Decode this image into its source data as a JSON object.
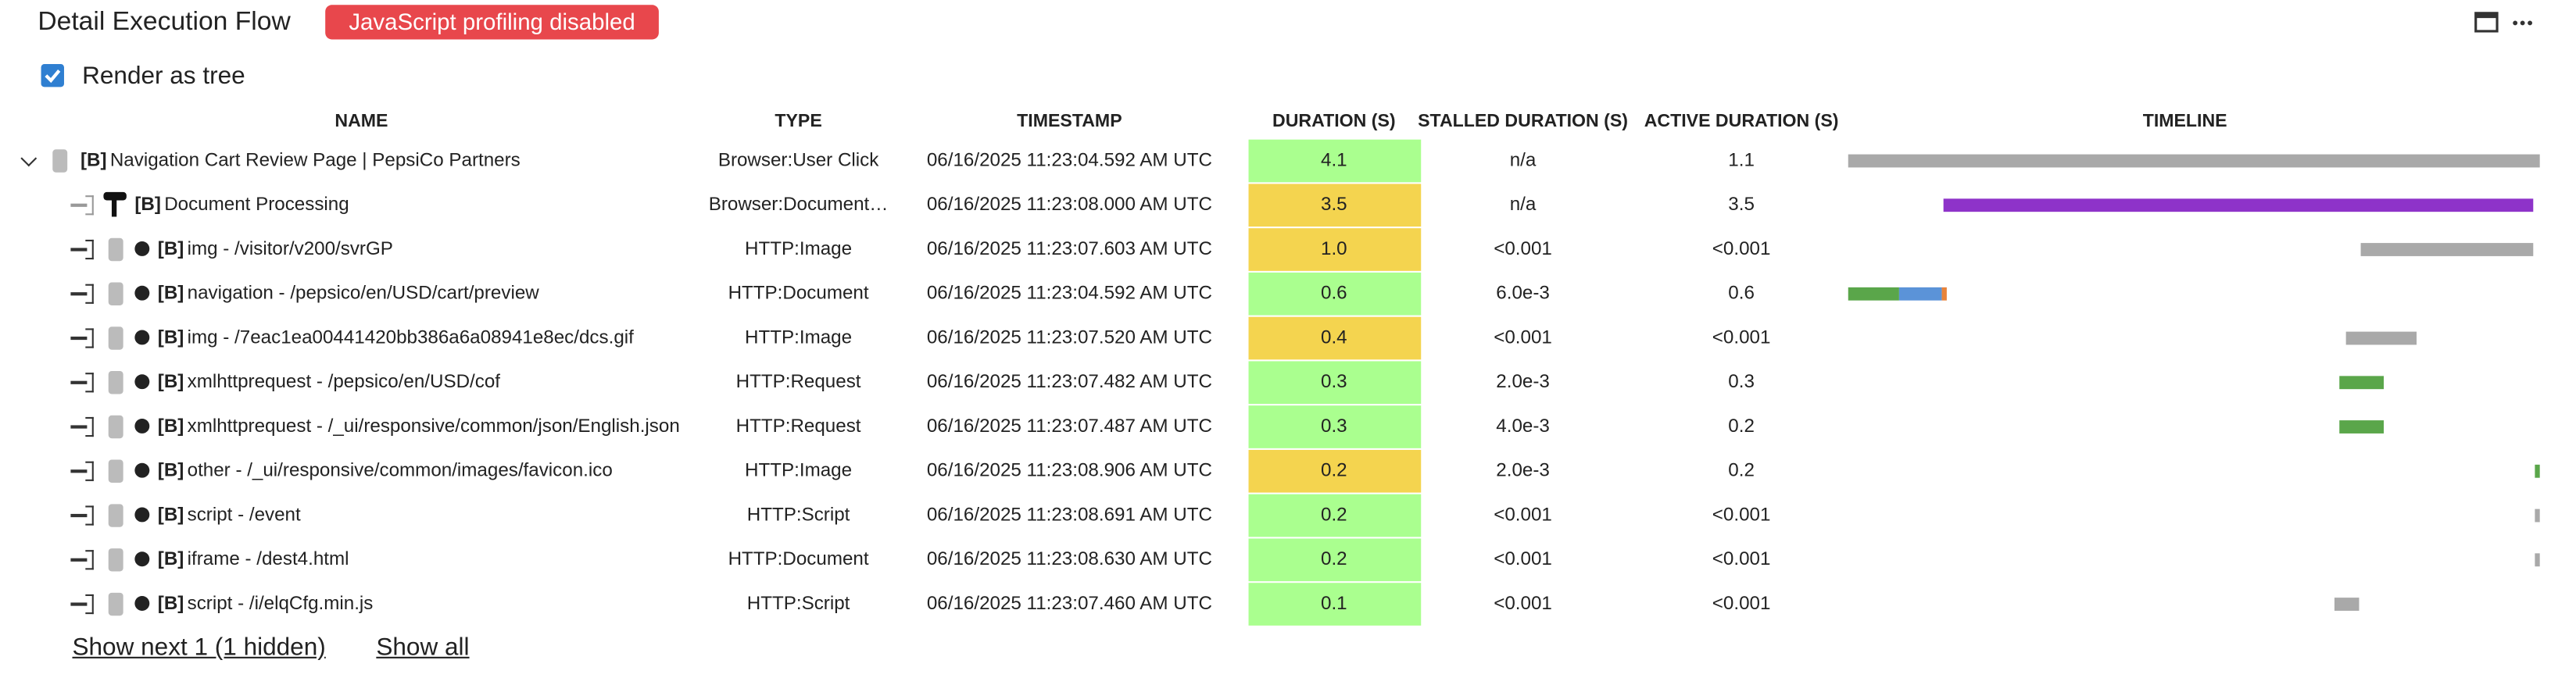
{
  "header": {
    "title": "Detail Execution Flow",
    "badge": "JavaScript profiling disabled",
    "checkbox_label": "Render as tree"
  },
  "table": {
    "columns": [
      "NAME",
      "TYPE",
      "TIMESTAMP",
      "DURATION (S)",
      "STALLED DURATION (S)",
      "ACTIVE DURATION (S)",
      "TIMELINE"
    ],
    "rows": [
      [
        "[B]",
        "Navigation Cart Review Page | PepsiCo Partners",
        "Browser:User Click",
        "06/16/2025 11:23:04.592 AM UTC",
        "4.1",
        "n/a",
        "1.1"
      ],
      [
        "[B]",
        "Document Processing",
        "Browser:Document…",
        "06/16/2025 11:23:08.000 AM UTC",
        "3.5",
        "n/a",
        "3.5"
      ],
      [
        "[B]",
        "img - /visitor/v200/svrGP",
        "HTTP:Image",
        "06/16/2025 11:23:07.603 AM UTC",
        "1.0",
        "<0.001",
        "<0.001"
      ],
      [
        "[B]",
        "navigation - /pepsico/en/USD/cart/preview",
        "HTTP:Document",
        "06/16/2025 11:23:04.592 AM UTC",
        "0.6",
        "6.0e-3",
        "0.6"
      ],
      [
        "[B]",
        "img - /7eac1ea00441420bb386a6a08941e8ec/dcs.gif",
        "HTTP:Image",
        "06/16/2025 11:23:07.520 AM UTC",
        "0.4",
        "<0.001",
        "<0.001"
      ],
      [
        "[B]",
        "xmlhttprequest - /pepsico/en/USD/cof",
        "HTTP:Request",
        "06/16/2025 11:23:07.482 AM UTC",
        "0.3",
        "2.0e-3",
        "0.3"
      ],
      [
        "[B]",
        "xmlhttprequest - /_ui/responsive/common/json/English.json",
        "HTTP:Request",
        "06/16/2025 11:23:07.487 AM UTC",
        "0.3",
        "4.0e-3",
        "0.2"
      ],
      [
        "[B]",
        "other - /_ui/responsive/common/images/favicon.ico",
        "HTTP:Image",
        "06/16/2025 11:23:08.906 AM UTC",
        "0.2",
        "2.0e-3",
        "0.2"
      ],
      [
        "[B]",
        "script - /event",
        "HTTP:Script",
        "06/16/2025 11:23:08.691 AM UTC",
        "0.2",
        "<0.001",
        "<0.001"
      ],
      [
        "[B]",
        "iframe - /dest4.html",
        "HTTP:Document",
        "06/16/2025 11:23:08.630 AM UTC",
        "0.2",
        "<0.001",
        "<0.001"
      ],
      [
        "[B]",
        "script - /i/elqCfg.min.js",
        "HTTP:Script",
        "06/16/2025 11:23:07.460 AM UTC",
        "0.1",
        "<0.001",
        "<0.001"
      ]
    ]
  },
  "footer": {
    "show_next": "Show next 1 (1 hidden)",
    "show_all": "Show all"
  }
}
